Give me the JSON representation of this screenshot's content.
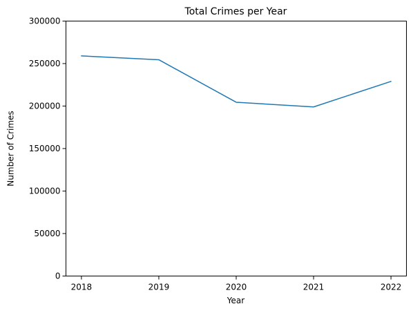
{
  "chart_data": {
    "type": "line",
    "title": "Total Crimes per Year",
    "xlabel": "Year",
    "ylabel": "Number of Crimes",
    "x": [
      2018,
      2019,
      2020,
      2021,
      2022
    ],
    "x_tick_labels": [
      "2018",
      "2019",
      "2020",
      "2021",
      "2022"
    ],
    "y_tick_values": [
      0,
      50000,
      100000,
      150000,
      200000,
      250000,
      300000
    ],
    "y_tick_labels": [
      "0",
      "50000",
      "100000",
      "150000",
      "200000",
      "250000",
      "300000"
    ],
    "ylim": [
      0,
      300000
    ],
    "xlim": [
      2017.8,
      2022.2
    ],
    "grid": false,
    "legend": "none",
    "series": [
      {
        "values": [
          259000,
          254500,
          204500,
          199000,
          229000
        ],
        "color": "#1f77b4"
      }
    ]
  }
}
